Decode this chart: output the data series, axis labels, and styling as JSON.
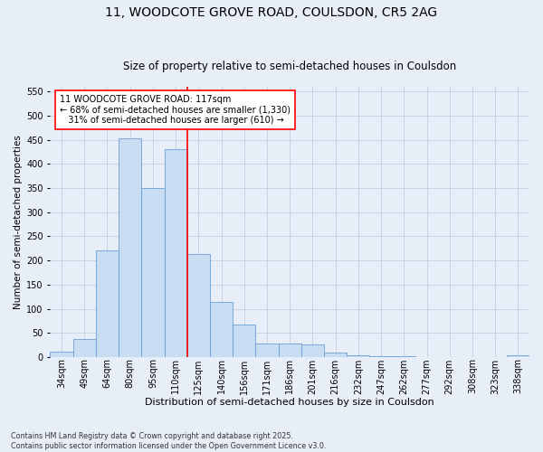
{
  "title1": "11, WOODCOTE GROVE ROAD, COULSDON, CR5 2AG",
  "title2": "Size of property relative to semi-detached houses in Coulsdon",
  "xlabel": "Distribution of semi-detached houses by size in Coulsdon",
  "ylabel": "Number of semi-detached properties",
  "categories": [
    "34sqm",
    "49sqm",
    "64sqm",
    "80sqm",
    "95sqm",
    "110sqm",
    "125sqm",
    "140sqm",
    "156sqm",
    "171sqm",
    "186sqm",
    "201sqm",
    "216sqm",
    "232sqm",
    "247sqm",
    "262sqm",
    "277sqm",
    "292sqm",
    "308sqm",
    "323sqm",
    "338sqm"
  ],
  "values": [
    12,
    38,
    220,
    453,
    351,
    430,
    214,
    114,
    68,
    28,
    28,
    27,
    9,
    4,
    2,
    1,
    0,
    0,
    0,
    0,
    4
  ],
  "bar_color": "#c9ddf2",
  "bar_edge_color": "#6a9fd8",
  "grid_color": "#c8d4e4",
  "background_color": "#e8eef8",
  "vline_x": 5.5,
  "vline_color": "red",
  "annotation_text": "11 WOODCOTE GROVE ROAD: 117sqm\n← 68% of semi-detached houses are smaller (1,330)\n   31% of semi-detached houses are larger (610) →",
  "annotation_box_color": "white",
  "annotation_box_edge": "red",
  "ylim": [
    0,
    560
  ],
  "yticks": [
    0,
    50,
    100,
    150,
    200,
    250,
    300,
    350,
    400,
    450,
    500,
    550
  ],
  "footer": "Contains HM Land Registry data © Crown copyright and database right 2025.\nContains public sector information licensed under the Open Government Licence v3.0.",
  "title1_fontsize": 10,
  "title2_fontsize": 8.5,
  "xlabel_fontsize": 8,
  "ylabel_fontsize": 7.5,
  "tick_fontsize": 7,
  "annot_fontsize": 7,
  "footer_fontsize": 5.8
}
